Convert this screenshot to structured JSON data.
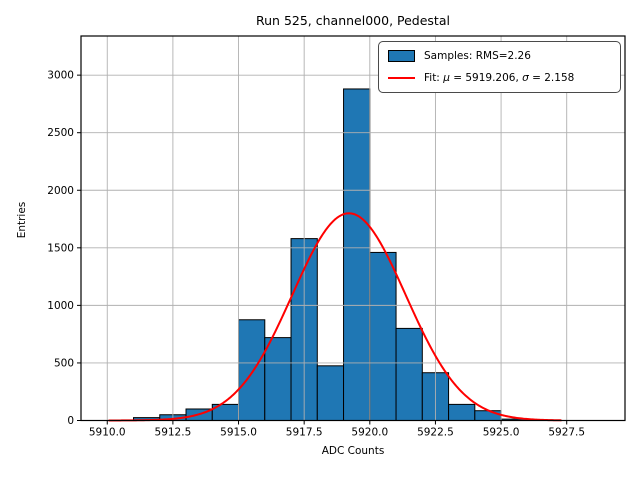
{
  "title": "Run 525, channel000, Pedestal",
  "axes": {
    "xlabel": "ADC Counts",
    "ylabel": "Entries"
  },
  "legend": {
    "samples_label": "Samples: RMS=2.26",
    "fit_parts": {
      "p0": "Fit: ",
      "mu": "μ",
      "p1": " = 5919.206, ",
      "sigma": "σ",
      "p2": " = 2.158"
    }
  },
  "chart_data": {
    "type": "histogram",
    "title": "Run 525, channel000, Pedestal",
    "xlabel": "ADC Counts",
    "ylabel": "Entries",
    "bin_edges": [
      5911,
      5912,
      5913,
      5914,
      5915,
      5916,
      5917,
      5918,
      5919,
      5920,
      5921,
      5922,
      5923,
      5924,
      5925,
      5926,
      5927
    ],
    "counts": [
      25,
      50,
      100,
      140,
      875,
      720,
      1580,
      475,
      2880,
      1460,
      800,
      415,
      140,
      85,
      12,
      5
    ],
    "bar_color": "#1f77b4",
    "bar_edge_color": "#000000",
    "fit_curve": {
      "type": "gaussian",
      "mu": 5919.206,
      "sigma": 2.158,
      "amplitude": 1800,
      "color": "#ff0000",
      "x_start": 5910.05,
      "x_end": 5927.35
    },
    "xlim": [
      5909.0,
      5929.72
    ],
    "ylim": [
      0,
      3340
    ],
    "xticks": {
      "values": [
        5910.0,
        5912.5,
        5915.0,
        5917.5,
        5920.0,
        5922.5,
        5925.0,
        5927.5
      ],
      "labels": [
        "5910.0",
        "5912.5",
        "5915.0",
        "5917.5",
        "5920.0",
        "5922.5",
        "5925.0",
        "5927.5"
      ]
    },
    "yticks": {
      "values": [
        0,
        500,
        1000,
        1500,
        2000,
        2500,
        3000
      ],
      "labels": [
        "0",
        "500",
        "1000",
        "1500",
        "2000",
        "2500",
        "3000"
      ]
    },
    "grid": true,
    "grid_color": "#b0b0b0",
    "legend_position": "upper right",
    "legend_entries": [
      {
        "handle": "patch",
        "color": "#1f77b4",
        "label": "Samples: RMS=2.26"
      },
      {
        "handle": "line",
        "color": "#ff0000",
        "label": "Fit: μ = 5919.206, σ = 2.158"
      }
    ]
  }
}
